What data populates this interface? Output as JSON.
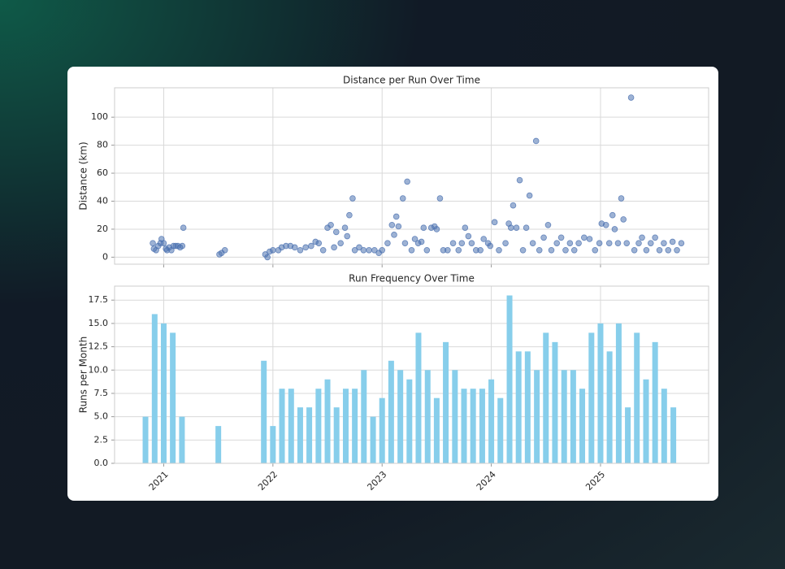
{
  "chart_data": [
    {
      "type": "scatter",
      "title": "Distance per Run Over Time",
      "ylabel": "Distance (km)",
      "color": "#4c72b0",
      "grid": true,
      "xlim": [
        2020.55,
        2025.99
      ],
      "xticks": [
        2021,
        2022,
        2023,
        2024,
        2025
      ],
      "ylim": [
        -5,
        121
      ],
      "yticks": [
        0,
        20,
        40,
        60,
        80,
        100
      ],
      "x": [
        2020.9,
        2020.91,
        2020.93,
        2020.95,
        2020.97,
        2020.98,
        2021.0,
        2021.02,
        2021.03,
        2021.05,
        2021.07,
        2021.09,
        2021.11,
        2021.13,
        2021.15,
        2021.17,
        2021.18,
        2021.51,
        2021.53,
        2021.56,
        2021.93,
        2021.95,
        2021.97,
        2022.0,
        2022.05,
        2022.08,
        2022.12,
        2022.16,
        2022.2,
        2022.25,
        2022.3,
        2022.35,
        2022.39,
        2022.42,
        2022.46,
        2022.5,
        2022.53,
        2022.56,
        2022.58,
        2022.62,
        2022.66,
        2022.68,
        2022.7,
        2022.73,
        2022.75,
        2022.79,
        2022.83,
        2022.88,
        2022.93,
        2022.97,
        2023.0,
        2023.05,
        2023.09,
        2023.11,
        2023.13,
        2023.15,
        2023.19,
        2023.21,
        2023.23,
        2023.27,
        2023.3,
        2023.33,
        2023.36,
        2023.38,
        2023.41,
        2023.45,
        2023.48,
        2023.5,
        2023.53,
        2023.56,
        2023.6,
        2023.65,
        2023.7,
        2023.73,
        2023.76,
        2023.79,
        2023.82,
        2023.86,
        2023.9,
        2023.93,
        2023.97,
        2023.99,
        2024.03,
        2024.07,
        2024.13,
        2024.16,
        2024.18,
        2024.2,
        2024.23,
        2024.26,
        2024.29,
        2024.32,
        2024.35,
        2024.38,
        2024.41,
        2024.44,
        2024.48,
        2024.52,
        2024.55,
        2024.6,
        2024.64,
        2024.68,
        2024.72,
        2024.76,
        2024.8,
        2024.85,
        2024.9,
        2024.95,
        2024.99,
        2025.01,
        2025.05,
        2025.08,
        2025.11,
        2025.13,
        2025.16,
        2025.19,
        2025.21,
        2025.24,
        2025.28,
        2025.31,
        2025.35,
        2025.38,
        2025.42,
        2025.46,
        2025.5,
        2025.54,
        2025.58,
        2025.62,
        2025.66,
        2025.7,
        2025.74
      ],
      "values": [
        10,
        6,
        5,
        8,
        10,
        13,
        10,
        6,
        5,
        7,
        5,
        8,
        8,
        8,
        7,
        8,
        21,
        2,
        3,
        5,
        2,
        0,
        4,
        5,
        5,
        7,
        8,
        8,
        7,
        5,
        7,
        8,
        11,
        10,
        5,
        21,
        23,
        7,
        18,
        10,
        21,
        15,
        30,
        42,
        5,
        7,
        5,
        5,
        5,
        3,
        5,
        10,
        23,
        16,
        29,
        22,
        42,
        10,
        54,
        5,
        13,
        10,
        11,
        21,
        5,
        21,
        22,
        20,
        42,
        5,
        5,
        10,
        5,
        10,
        21,
        15,
        10,
        5,
        5,
        13,
        10,
        8,
        25,
        5,
        10,
        24,
        21,
        37,
        21,
        55,
        5,
        21,
        44,
        10,
        83,
        5,
        14,
        23,
        5,
        10,
        14,
        5,
        10,
        5,
        10,
        14,
        13,
        5,
        10,
        24,
        23,
        10,
        30,
        20,
        10,
        42,
        27,
        10,
        114,
        5,
        10,
        14,
        5,
        10,
        14,
        5,
        10,
        5,
        11,
        5,
        10
      ]
    },
    {
      "type": "bar",
      "title": "Run Frequency Over Time",
      "ylabel": "Runs per Month",
      "color": "#87ceeb",
      "grid": true,
      "xlim": [
        2020.55,
        2025.99
      ],
      "xticks": [
        2021,
        2022,
        2023,
        2024,
        2025
      ],
      "ylim": [
        0,
        19
      ],
      "yticks": [
        {
          "value": 0,
          "label": "0.0"
        },
        2.5,
        {
          "value": 5,
          "label": "5.0"
        },
        7.5,
        {
          "value": 10,
          "label": "10.0"
        },
        12.5,
        {
          "value": 15,
          "label": "15.0"
        },
        17.5
      ],
      "x": [
        2020.833,
        2020.917,
        2021.0,
        2021.083,
        2021.167,
        2021.5,
        2021.917,
        2022.0,
        2022.083,
        2022.167,
        2022.25,
        2022.333,
        2022.417,
        2022.5,
        2022.583,
        2022.667,
        2022.75,
        2022.833,
        2022.917,
        2023.0,
        2023.083,
        2023.167,
        2023.25,
        2023.333,
        2023.417,
        2023.5,
        2023.583,
        2023.667,
        2023.75,
        2023.833,
        2023.917,
        2024.0,
        2024.083,
        2024.167,
        2024.25,
        2024.333,
        2024.417,
        2024.5,
        2024.583,
        2024.667,
        2024.75,
        2024.833,
        2024.917,
        2025.0,
        2025.083,
        2025.167,
        2025.25,
        2025.333,
        2025.417,
        2025.5,
        2025.583,
        2025.667
      ],
      "values": [
        5,
        16,
        15,
        14,
        5,
        4,
        11,
        4,
        8,
        8,
        6,
        6,
        8,
        9,
        6,
        8,
        8,
        10,
        5,
        7,
        11,
        10,
        9,
        14,
        10,
        7,
        13,
        10,
        8,
        8,
        8,
        9,
        7,
        18,
        12,
        12,
        10,
        14,
        13,
        10,
        10,
        8,
        14,
        15,
        12,
        15,
        6,
        14,
        9,
        13,
        8,
        6
      ]
    }
  ]
}
